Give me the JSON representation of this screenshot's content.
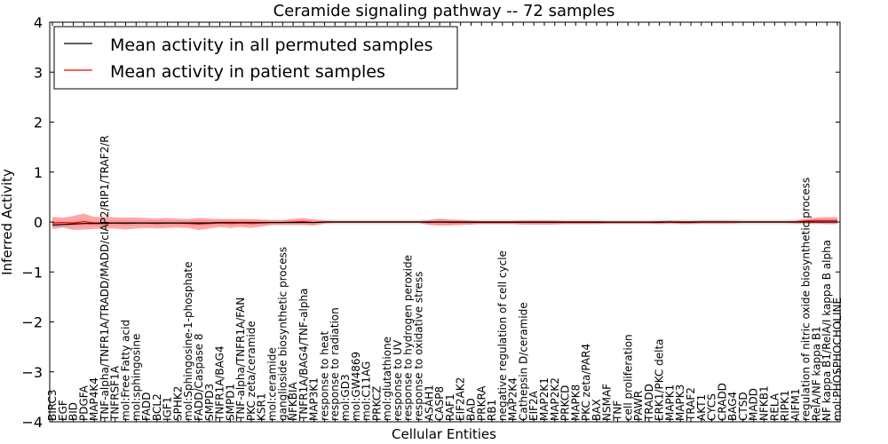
{
  "chart_data": {
    "type": "line",
    "title": "Ceramide signaling pathway -- 72 samples",
    "xlabel": "Cellular Entities",
    "ylabel": "Inferred Activity",
    "ylim": [
      -4,
      4
    ],
    "yticks": [
      "−4",
      "−3",
      "−2",
      "−1",
      "0",
      "1",
      "2",
      "3",
      "4"
    ],
    "grid": false,
    "legend_position": "top-left",
    "categories": [
      "BIRC3",
      "EGF",
      "BID",
      "PDGFA",
      "MAP4K4",
      "TNF-alpha/TNFR1A/TRADD/MADD/cIAP2/RIP1/TRAF2/R",
      "TNFRSF1A",
      "mol:Free Fatty acid",
      "mol:sphingosine",
      "FADD",
      "BCL2",
      "IGF1",
      "SPHK2",
      "mol:Sphingosine-1-phosphate",
      "FADD/Caspase 8",
      "SMPD3",
      "TNFR1A/BAG4",
      "SMPD1",
      "TNF-alpha/TNFR1A/FAN",
      "PKC zeta/ceramide",
      "KSR1",
      "mol:ceramide",
      "ganglioside biosynthetic process",
      "NFKBIA",
      "TNFR1A/BAG4/TNF-alpha",
      "MAP3K1",
      "response to heat",
      "response to radiation",
      "mol:GD3",
      "mol:GW4869",
      "mol:C11AG",
      "PRKCZ",
      "mol:glutathione",
      "response to UV",
      "response to hydrogen peroxide",
      "response to oxidative stress",
      "ASAH1",
      "CASP8",
      "RAF1",
      "EIF2AK2",
      "BAD",
      "PRKRA",
      "RB1",
      "negative regulation of cell cycle",
      "MAP2K4",
      "Cathepsin D/ceramide",
      "EIF2A",
      "MAP2K1",
      "MAP2K2",
      "PRKCD",
      "MAPK8",
      "PKC zeta/PAR4",
      "BAX",
      "NSMAF",
      "TNF",
      "cell proliferation",
      "PAWR",
      "TRADD",
      "ERK1/PKC delta",
      "MAPK1",
      "MAPK3",
      "TRAF2",
      "AKT1",
      "CYCS",
      "CRADD",
      "BAG4",
      "CTSD",
      "MADD",
      "NFKB1",
      "RELA",
      "RIPK1",
      "AIFM1",
      "regulation of nitric oxide biosynthetic process",
      "RelA/NF kappa B1",
      "NF kappa B1/RelA/I kappa B alpha",
      "mol:PHOSPHOCHOLINE"
    ],
    "series": [
      {
        "name": "Mean activity in all permuted samples",
        "color": "#000000",
        "values": [
          -0.06,
          -0.05,
          -0.04,
          -0.03,
          -0.03,
          -0.03,
          -0.02,
          -0.02,
          -0.02,
          -0.02,
          -0.02,
          -0.02,
          -0.02,
          -0.02,
          -0.02,
          -0.02,
          -0.01,
          -0.01,
          -0.01,
          -0.01,
          -0.01,
          -0.01,
          -0.01,
          -0.01,
          -0.01,
          -0.01,
          0,
          0,
          0,
          0,
          0,
          0,
          0,
          0,
          0,
          0,
          0,
          0,
          0,
          0,
          0,
          0,
          0,
          0,
          0,
          0,
          0,
          0,
          0,
          0,
          0,
          0,
          0,
          0,
          0,
          0,
          0,
          0,
          0,
          0,
          0,
          0,
          0,
          0,
          0,
          0,
          0,
          0,
          0,
          0,
          0,
          0,
          0,
          0,
          0,
          0
        ],
        "band": 0.05
      },
      {
        "name": "Mean activity in patient samples",
        "color": "#ff0000",
        "values": [
          -0.02,
          -0.01,
          -0.02,
          0.01,
          -0.02,
          -0.01,
          -0.02,
          -0.03,
          -0.02,
          -0.02,
          -0.03,
          -0.02,
          -0.02,
          -0.03,
          -0.04,
          -0.03,
          -0.02,
          -0.03,
          -0.02,
          -0.03,
          -0.02,
          -0.01,
          -0.01,
          0,
          0.01,
          -0.01,
          0,
          0,
          0,
          0,
          0,
          0,
          0,
          0,
          0,
          0,
          -0.01,
          0,
          -0.01,
          -0.01,
          -0.01,
          -0.01,
          -0.01,
          -0.01,
          -0.01,
          -0.01,
          -0.01,
          -0.01,
          -0.01,
          -0.01,
          -0.01,
          -0.01,
          -0.01,
          -0.01,
          -0.01,
          -0.01,
          -0.01,
          -0.01,
          -0.01,
          0,
          -0.01,
          -0.01,
          0,
          0,
          0,
          0,
          0,
          0,
          0,
          0,
          0,
          0,
          0.02,
          0.03,
          0.03,
          0.03
        ],
        "band": [
          0.12,
          0.1,
          0.14,
          0.16,
          0.12,
          0.12,
          0.11,
          0.12,
          0.11,
          0.1,
          0.1,
          0.1,
          0.09,
          0.09,
          0.12,
          0.1,
          0.08,
          0.09,
          0.08,
          0.09,
          0.07,
          0.05,
          0.05,
          0.06,
          0.07,
          0.06,
          0.03,
          0.02,
          0.02,
          0.02,
          0.02,
          0.02,
          0.02,
          0.02,
          0.02,
          0.02,
          0.05,
          0.07,
          0.06,
          0.05,
          0.04,
          0.03,
          0.03,
          0.03,
          0.03,
          0.04,
          0.04,
          0.04,
          0.04,
          0.03,
          0.03,
          0.03,
          0.03,
          0.02,
          0.02,
          0.02,
          0.02,
          0.02,
          0.03,
          0.03,
          0.03,
          0.03,
          0.03,
          0.03,
          0.03,
          0.03,
          0.02,
          0.02,
          0.02,
          0.02,
          0.02,
          0.03,
          0.05,
          0.06,
          0.07,
          0.07
        ]
      }
    ]
  }
}
